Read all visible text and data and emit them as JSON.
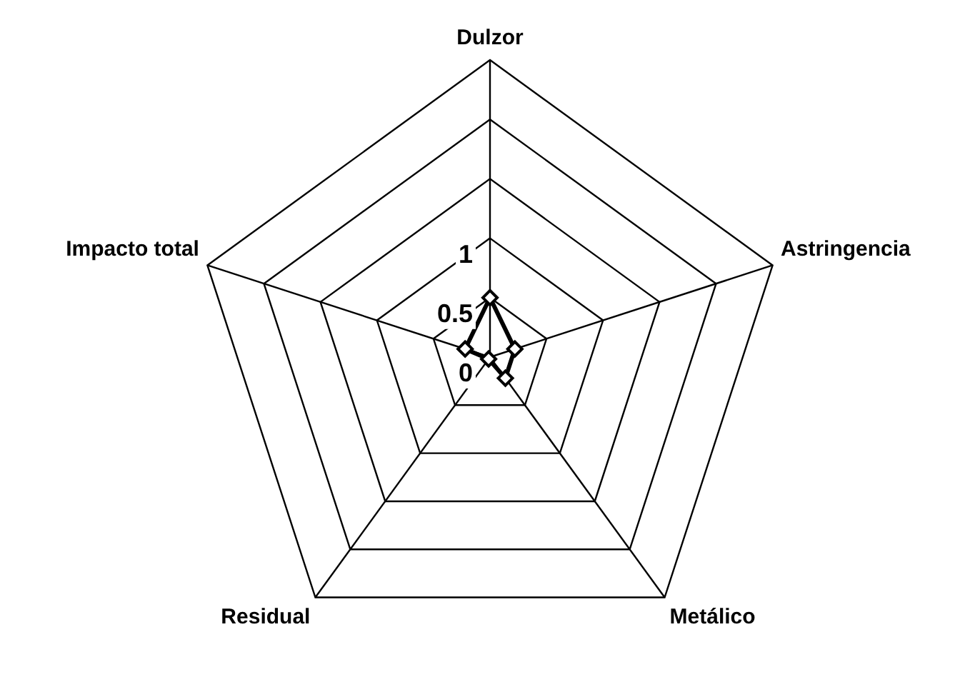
{
  "chart_data": {
    "type": "radar",
    "categories": [
      "Dulzor",
      "Astringencia",
      "Metálico",
      "Residual",
      "Impacto total"
    ],
    "series": [
      {
        "color": "#000000",
        "values": [
          0.5,
          0.22,
          0.22,
          0.02,
          0.22
        ]
      }
    ],
    "ylim": [
      0,
      2.5
    ],
    "yticks": [
      0,
      0.5,
      1
    ],
    "grid": true,
    "legend": false,
    "marker": "diamond",
    "line_style": "solid"
  }
}
